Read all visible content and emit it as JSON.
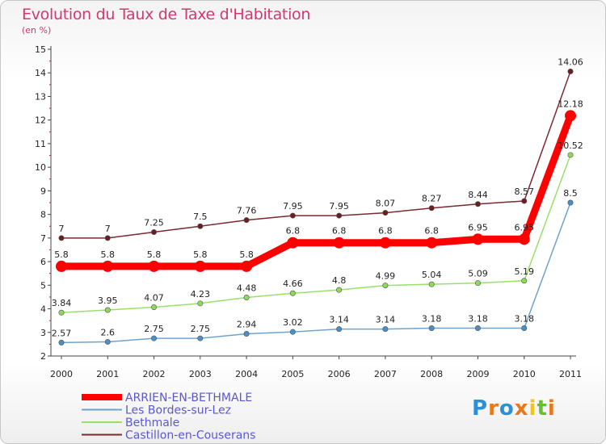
{
  "chart_data": {
    "type": "line",
    "title": "Evolution du Taux de Taxe d'Habitation",
    "subtitle": "(en %)",
    "ylim": [
      2,
      15
    ],
    "yticks": [
      2,
      3,
      4,
      5,
      6,
      7,
      8,
      9,
      10,
      11,
      12,
      13,
      14,
      15
    ],
    "x": [
      "2000",
      "2001",
      "2002",
      "2003",
      "2004",
      "2005",
      "2006",
      "2007",
      "2008",
      "2009",
      "2010",
      "2011"
    ],
    "grid": false,
    "legend_position": "bottom-left",
    "series": [
      {
        "name": "ARRIEN-EN-BETHMALE",
        "color": "#ff0000",
        "values": [
          5.8,
          5.8,
          5.8,
          5.8,
          5.8,
          6.8,
          6.8,
          6.8,
          6.8,
          6.95,
          6.95,
          12.18
        ],
        "labels": [
          "5.8",
          "5.8",
          "5.8",
          "5.8",
          "5.8",
          "6.8",
          "6.8",
          "6.8",
          "6.8",
          "6.95",
          "6.95",
          "12.18"
        ]
      },
      {
        "name": "Les Bordes-sur-Lez",
        "color": "#6fa3cc",
        "values": [
          2.57,
          2.6,
          2.75,
          2.75,
          2.94,
          3.02,
          3.14,
          3.14,
          3.18,
          3.18,
          3.18,
          8.5
        ],
        "labels": [
          "2.57",
          "2.6",
          "2.75",
          "2.75",
          "2.94",
          "3.02",
          "3.14",
          "3.14",
          "3.18",
          "3.18",
          "3.18",
          "8.5"
        ]
      },
      {
        "name": "Bethmale",
        "color": "#99e06a",
        "values": [
          3.84,
          3.95,
          4.07,
          4.23,
          4.48,
          4.66,
          4.8,
          4.99,
          5.04,
          5.09,
          5.19,
          10.52
        ],
        "labels": [
          "3.84",
          "3.95",
          "4.07",
          "4.23",
          "4.48",
          "4.66",
          "4.8",
          "4.99",
          "5.04",
          "5.09",
          "5.19",
          "10.52"
        ]
      },
      {
        "name": "Castillon-en-Couserans",
        "color": "#7a2a30",
        "values": [
          7,
          7,
          7.25,
          7.5,
          7.76,
          7.95,
          7.95,
          8.07,
          8.27,
          8.44,
          8.57,
          14.06
        ],
        "labels": [
          "7",
          "7",
          "7.25",
          "7.5",
          "7.76",
          "7.95",
          "7.95",
          "8.07",
          "8.27",
          "8.44",
          "8.57",
          "14.06"
        ]
      }
    ]
  },
  "legend_order": [
    0,
    1,
    2,
    3
  ],
  "logo": {
    "letters": [
      "P",
      "r",
      "o",
      "x",
      "i",
      "t",
      "i"
    ],
    "colors": [
      "#2d8fd6",
      "#e8781a",
      "#2d8fd6",
      "#e8781a",
      "#f0c419",
      "#6abf2e",
      "#e8781a"
    ]
  }
}
